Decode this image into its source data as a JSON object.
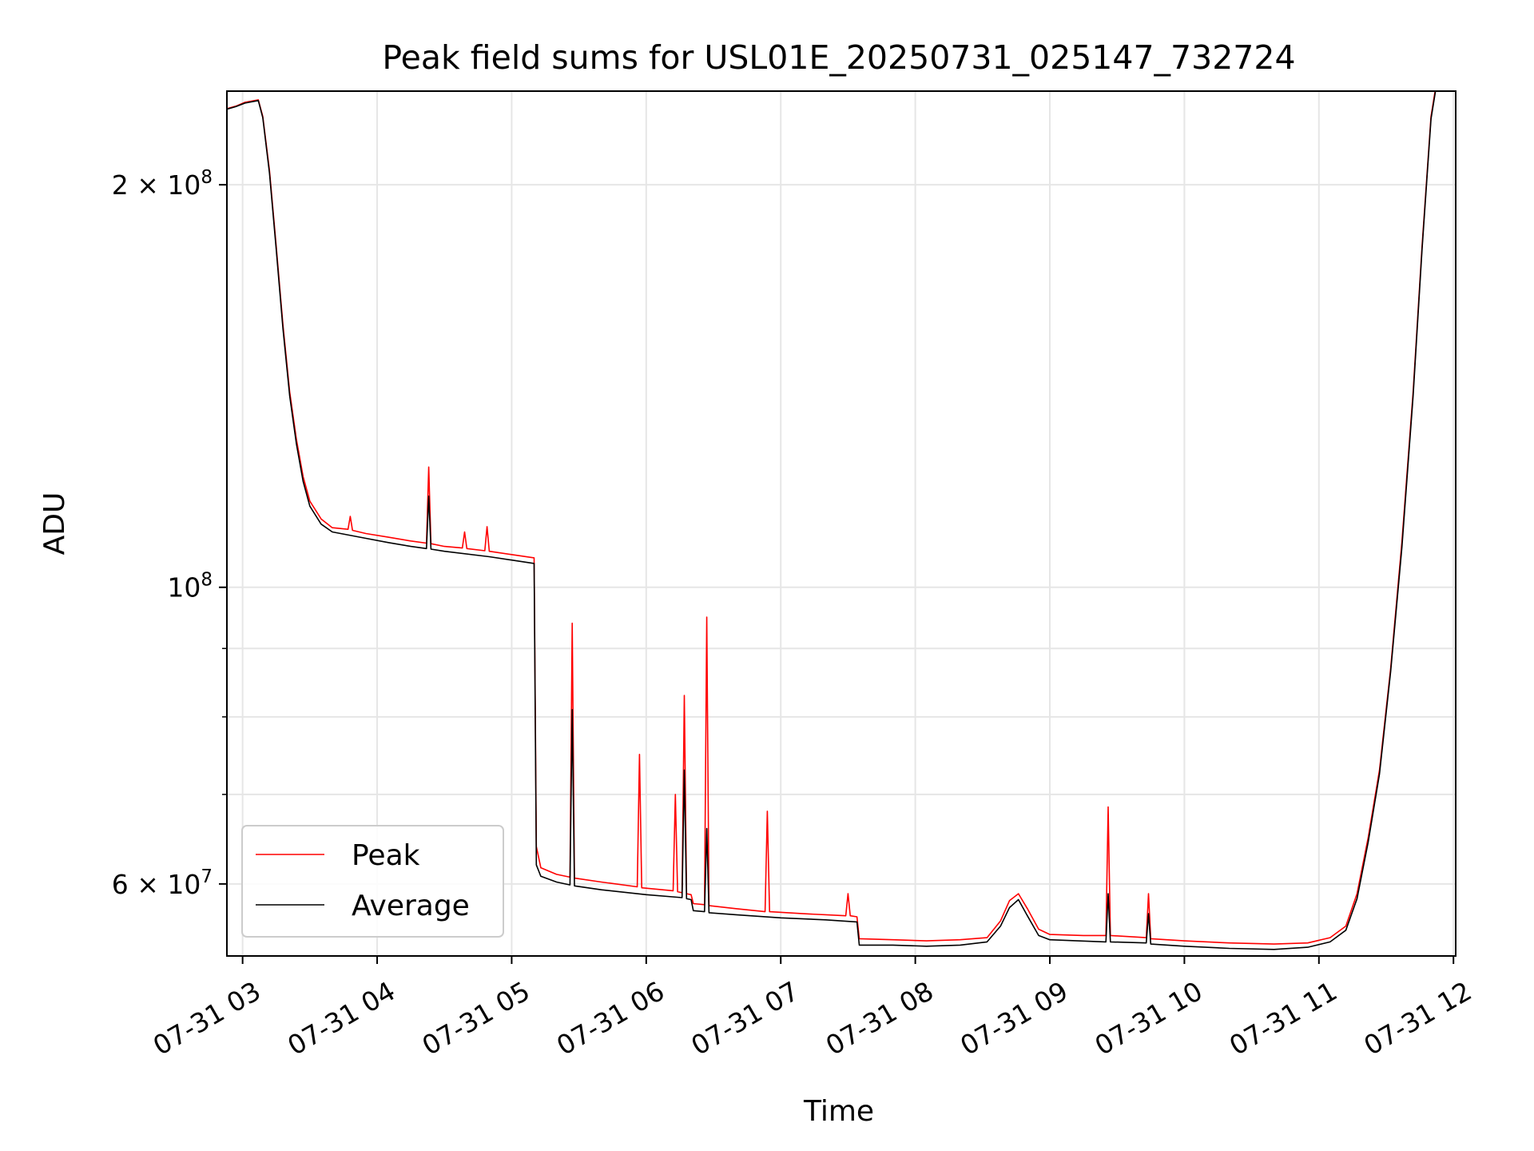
{
  "chart_data": {
    "type": "line",
    "title": "Peak field sums for USL01E_20250731_025147_732724",
    "xlabel": "Time",
    "ylabel": "ADU",
    "x_type": "time",
    "xlim": [
      "2025-07-31 02:53",
      "2025-07-31 12:01"
    ],
    "ylim": [
      53000000,
      235000000
    ],
    "y_scale": "log",
    "x_ticks": [
      {
        "value": "2025-07-31 03:00",
        "label": "07-31 03"
      },
      {
        "value": "2025-07-31 04:00",
        "label": "07-31 04"
      },
      {
        "value": "2025-07-31 05:00",
        "label": "07-31 05"
      },
      {
        "value": "2025-07-31 06:00",
        "label": "07-31 06"
      },
      {
        "value": "2025-07-31 07:00",
        "label": "07-31 07"
      },
      {
        "value": "2025-07-31 08:00",
        "label": "07-31 08"
      },
      {
        "value": "2025-07-31 09:00",
        "label": "07-31 09"
      },
      {
        "value": "2025-07-31 10:00",
        "label": "07-31 10"
      },
      {
        "value": "2025-07-31 11:00",
        "label": "07-31 11"
      },
      {
        "value": "2025-07-31 12:00",
        "label": "07-31 12"
      }
    ],
    "y_ticks_major": [
      {
        "value": 200000000,
        "base": "2 × 10",
        "exp": "8"
      },
      {
        "value": 100000000,
        "base": "10",
        "exp": "8"
      },
      {
        "value": 60000000,
        "base": "6 × 10",
        "exp": "7"
      }
    ],
    "y_ticks_minor": [
      70000000,
      80000000,
      90000000
    ],
    "grid": true,
    "legend_position": "lower-left",
    "series": [
      {
        "name": "Peak",
        "color": "#ff0000",
        "points": [
          [
            "2025-07-31 02:53",
            228000000
          ],
          [
            "2025-07-31 02:57",
            229000000
          ],
          [
            "2025-07-31 03:01",
            230500000
          ],
          [
            "2025-07-31 03:07",
            231500000
          ],
          [
            "2025-07-31 03:09",
            225000000
          ],
          [
            "2025-07-31 03:12",
            205000000
          ],
          [
            "2025-07-31 03:15",
            180000000
          ],
          [
            "2025-07-31 03:18",
            157000000
          ],
          [
            "2025-07-31 03:21",
            140000000
          ],
          [
            "2025-07-31 03:24",
            129000000
          ],
          [
            "2025-07-31 03:27",
            121000000
          ],
          [
            "2025-07-31 03:30",
            116000000
          ],
          [
            "2025-07-31 03:35",
            112500000
          ],
          [
            "2025-07-31 03:40",
            110800000
          ],
          [
            "2025-07-31 03:47",
            110500000
          ],
          [
            "2025-07-31 03:48",
            113000000
          ],
          [
            "2025-07-31 03:49",
            110300000
          ],
          [
            "2025-07-31 03:55",
            109700000
          ],
          [
            "2025-07-31 04:05",
            109000000
          ],
          [
            "2025-07-31 04:15",
            108300000
          ],
          [
            "2025-07-31 04:22",
            107900000
          ],
          [
            "2025-07-31 04:23",
            123000000
          ],
          [
            "2025-07-31 04:24",
            107800000
          ],
          [
            "2025-07-31 04:30",
            107300000
          ],
          [
            "2025-07-31 04:38",
            107000000
          ],
          [
            "2025-07-31 04:39",
            110000000
          ],
          [
            "2025-07-31 04:40",
            106900000
          ],
          [
            "2025-07-31 04:48",
            106500000
          ],
          [
            "2025-07-31 04:49",
            111000000
          ],
          [
            "2025-07-31 04:50",
            106400000
          ],
          [
            "2025-07-31 05:00",
            105800000
          ],
          [
            "2025-07-31 05:10",
            105200000
          ],
          [
            "2025-07-31 05:11",
            64000000
          ],
          [
            "2025-07-31 05:13",
            61700000
          ],
          [
            "2025-07-31 05:20",
            61000000
          ],
          [
            "2025-07-31 05:26",
            60700000
          ],
          [
            "2025-07-31 05:27",
            94000000
          ],
          [
            "2025-07-31 05:28",
            60600000
          ],
          [
            "2025-07-31 05:40",
            60200000
          ],
          [
            "2025-07-31 05:56",
            59700000
          ],
          [
            "2025-07-31 05:57",
            75000000
          ],
          [
            "2025-07-31 05:58",
            59600000
          ],
          [
            "2025-07-31 06:12",
            59300000
          ],
          [
            "2025-07-31 06:13",
            70000000
          ],
          [
            "2025-07-31 06:14",
            59200000
          ],
          [
            "2025-07-31 06:16",
            59100000
          ],
          [
            "2025-07-31 06:17",
            83000000
          ],
          [
            "2025-07-31 06:18",
            59000000
          ],
          [
            "2025-07-31 06:20",
            58900000
          ],
          [
            "2025-07-31 06:21",
            58000000
          ],
          [
            "2025-07-31 06:26",
            57900000
          ],
          [
            "2025-07-31 06:27",
            95000000
          ],
          [
            "2025-07-31 06:28",
            57800000
          ],
          [
            "2025-07-31 06:40",
            57500000
          ],
          [
            "2025-07-31 06:53",
            57200000
          ],
          [
            "2025-07-31 06:54",
            68000000
          ],
          [
            "2025-07-31 06:55",
            57200000
          ],
          [
            "2025-07-31 07:10",
            57000000
          ],
          [
            "2025-07-31 07:29",
            56800000
          ],
          [
            "2025-07-31 07:30",
            59000000
          ],
          [
            "2025-07-31 07:31",
            56800000
          ],
          [
            "2025-07-31 07:34",
            56700000
          ],
          [
            "2025-07-31 07:35",
            54600000
          ],
          [
            "2025-07-31 07:50",
            54500000
          ],
          [
            "2025-07-31 08:05",
            54400000
          ],
          [
            "2025-07-31 08:20",
            54500000
          ],
          [
            "2025-07-31 08:32",
            54700000
          ],
          [
            "2025-07-31 08:38",
            56300000
          ],
          [
            "2025-07-31 08:42",
            58300000
          ],
          [
            "2025-07-31 08:46",
            59000000
          ],
          [
            "2025-07-31 08:50",
            57500000
          ],
          [
            "2025-07-31 08:55",
            55500000
          ],
          [
            "2025-07-31 09:00",
            55000000
          ],
          [
            "2025-07-31 09:15",
            54900000
          ],
          [
            "2025-07-31 09:25",
            54900000
          ],
          [
            "2025-07-31 09:26",
            68500000
          ],
          [
            "2025-07-31 09:27",
            54900000
          ],
          [
            "2025-07-31 09:43",
            54700000
          ],
          [
            "2025-07-31 09:44",
            59000000
          ],
          [
            "2025-07-31 09:45",
            54600000
          ],
          [
            "2025-07-31 10:00",
            54400000
          ],
          [
            "2025-07-31 10:20",
            54200000
          ],
          [
            "2025-07-31 10:40",
            54100000
          ],
          [
            "2025-07-31 10:55",
            54200000
          ],
          [
            "2025-07-31 11:05",
            54700000
          ],
          [
            "2025-07-31 11:12",
            55800000
          ],
          [
            "2025-07-31 11:17",
            59000000
          ],
          [
            "2025-07-31 11:22",
            65000000
          ],
          [
            "2025-07-31 11:27",
            73000000
          ],
          [
            "2025-07-31 11:32",
            87000000
          ],
          [
            "2025-07-31 11:37",
            108000000
          ],
          [
            "2025-07-31 11:42",
            140000000
          ],
          [
            "2025-07-31 11:46",
            180000000
          ],
          [
            "2025-07-31 11:50",
            225000000
          ],
          [
            "2025-07-31 11:52",
            236000000
          ]
        ]
      },
      {
        "name": "Average",
        "color": "#000000",
        "points": [
          [
            "2025-07-31 02:53",
            227800000
          ],
          [
            "2025-07-31 02:57",
            228800000
          ],
          [
            "2025-07-31 03:01",
            230200000
          ],
          [
            "2025-07-31 03:07",
            231200000
          ],
          [
            "2025-07-31 03:09",
            224500000
          ],
          [
            "2025-07-31 03:12",
            204000000
          ],
          [
            "2025-07-31 03:15",
            179000000
          ],
          [
            "2025-07-31 03:18",
            156000000
          ],
          [
            "2025-07-31 03:21",
            139000000
          ],
          [
            "2025-07-31 03:24",
            128000000
          ],
          [
            "2025-07-31 03:27",
            120000000
          ],
          [
            "2025-07-31 03:30",
            115000000
          ],
          [
            "2025-07-31 03:35",
            111500000
          ],
          [
            "2025-07-31 03:40",
            110000000
          ],
          [
            "2025-07-31 03:55",
            108800000
          ],
          [
            "2025-07-31 04:05",
            108000000
          ],
          [
            "2025-07-31 04:15",
            107300000
          ],
          [
            "2025-07-31 04:22",
            106900000
          ],
          [
            "2025-07-31 04:23",
            117000000
          ],
          [
            "2025-07-31 04:24",
            106800000
          ],
          [
            "2025-07-31 04:30",
            106400000
          ],
          [
            "2025-07-31 04:50",
            105400000
          ],
          [
            "2025-07-31 05:00",
            104800000
          ],
          [
            "2025-07-31 05:10",
            104200000
          ],
          [
            "2025-07-31 05:11",
            62000000
          ],
          [
            "2025-07-31 05:13",
            60800000
          ],
          [
            "2025-07-31 05:20",
            60200000
          ],
          [
            "2025-07-31 05:26",
            59900000
          ],
          [
            "2025-07-31 05:27",
            81000000
          ],
          [
            "2025-07-31 05:28",
            59800000
          ],
          [
            "2025-07-31 05:40",
            59400000
          ],
          [
            "2025-07-31 06:00",
            58900000
          ],
          [
            "2025-07-31 06:16",
            58600000
          ],
          [
            "2025-07-31 06:17",
            73000000
          ],
          [
            "2025-07-31 06:18",
            58500000
          ],
          [
            "2025-07-31 06:20",
            58400000
          ],
          [
            "2025-07-31 06:21",
            57300000
          ],
          [
            "2025-07-31 06:26",
            57200000
          ],
          [
            "2025-07-31 06:27",
            66000000
          ],
          [
            "2025-07-31 06:28",
            57100000
          ],
          [
            "2025-07-31 06:40",
            56900000
          ],
          [
            "2025-07-31 07:00",
            56600000
          ],
          [
            "2025-07-31 07:20",
            56400000
          ],
          [
            "2025-07-31 07:34",
            56200000
          ],
          [
            "2025-07-31 07:35",
            54000000
          ],
          [
            "2025-07-31 07:50",
            54000000
          ],
          [
            "2025-07-31 08:05",
            53900000
          ],
          [
            "2025-07-31 08:20",
            54000000
          ],
          [
            "2025-07-31 08:32",
            54300000
          ],
          [
            "2025-07-31 08:38",
            55800000
          ],
          [
            "2025-07-31 08:42",
            57600000
          ],
          [
            "2025-07-31 08:46",
            58400000
          ],
          [
            "2025-07-31 08:50",
            56800000
          ],
          [
            "2025-07-31 08:55",
            54900000
          ],
          [
            "2025-07-31 09:00",
            54500000
          ],
          [
            "2025-07-31 09:25",
            54300000
          ],
          [
            "2025-07-31 09:26",
            59000000
          ],
          [
            "2025-07-31 09:27",
            54300000
          ],
          [
            "2025-07-31 09:43",
            54200000
          ],
          [
            "2025-07-31 09:44",
            57000000
          ],
          [
            "2025-07-31 09:45",
            54100000
          ],
          [
            "2025-07-31 10:00",
            53900000
          ],
          [
            "2025-07-31 10:20",
            53700000
          ],
          [
            "2025-07-31 10:40",
            53600000
          ],
          [
            "2025-07-31 10:55",
            53800000
          ],
          [
            "2025-07-31 11:05",
            54300000
          ],
          [
            "2025-07-31 11:12",
            55400000
          ],
          [
            "2025-07-31 11:17",
            58500000
          ],
          [
            "2025-07-31 11:22",
            64500000
          ],
          [
            "2025-07-31 11:27",
            72500000
          ],
          [
            "2025-07-31 11:32",
            86500000
          ],
          [
            "2025-07-31 11:37",
            107000000
          ],
          [
            "2025-07-31 11:42",
            139000000
          ],
          [
            "2025-07-31 11:46",
            179000000
          ],
          [
            "2025-07-31 11:50",
            224000000
          ],
          [
            "2025-07-31 11:52",
            235000000
          ]
        ]
      }
    ]
  }
}
